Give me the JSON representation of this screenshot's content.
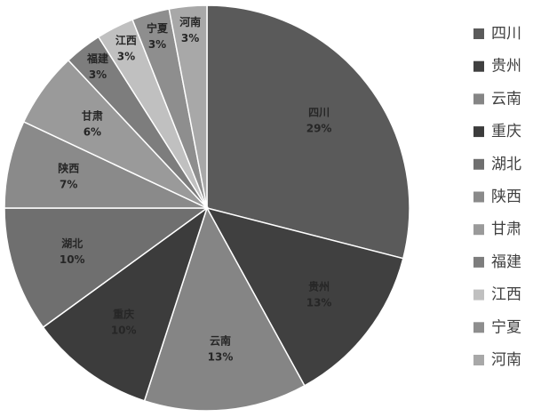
{
  "chart_data": {
    "type": "pie",
    "categories": [
      "四川",
      "贵州",
      "云南",
      "重庆",
      "湖北",
      "陕西",
      "甘肃",
      "福建",
      "江西",
      "宁夏",
      "河南"
    ],
    "values": [
      29,
      13,
      13,
      10,
      10,
      7,
      6,
      3,
      3,
      3,
      3
    ],
    "value_labels": [
      "29%",
      "13%",
      "13%",
      "10%",
      "10%",
      "7%",
      "6%",
      "3%",
      "3%",
      "3%",
      "3%"
    ],
    "colors": [
      "#5a5a5a",
      "#404040",
      "#858585",
      "#3c3c3c",
      "#6f6f6f",
      "#8a8a8a",
      "#9a9a9a",
      "#7d7d7d",
      "#c0c0c0",
      "#8e8e8e",
      "#a8a8a8"
    ],
    "legend": "right"
  }
}
